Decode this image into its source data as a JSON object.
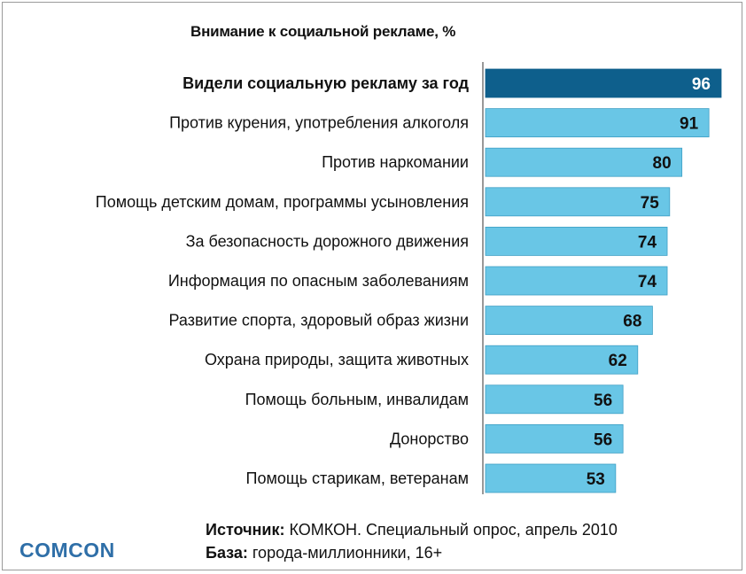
{
  "chart_data": {
    "type": "bar",
    "orientation": "horizontal",
    "title": "Внимание к социальной рекламе, %",
    "categories": [
      "Видели социальную рекламу за год",
      "Против курения, употребления алкоголя",
      "Против наркомании",
      "Помощь детским домам, программы усыновления",
      "За безопасность дорожного движения",
      "Информация по опасным заболеваниям",
      "Развитие спорта, здоровый образ жизни",
      "Охрана природы, защита животных",
      "Помощь больным, инвалидам",
      "Донорство",
      "Помощь старикам, ветеранам"
    ],
    "values": [
      96,
      91,
      80,
      75,
      74,
      74,
      68,
      62,
      56,
      56,
      53
    ],
    "highlight_index": 0,
    "xlim": [
      0,
      100
    ],
    "grid": false,
    "colors": {
      "highlight": "#0e5f8c",
      "bar": "#69c6e6",
      "bar_border": "#3e9fc4",
      "axis": "#555555",
      "value_on_dark": "#ffffff",
      "value_on_light": "#111111"
    }
  },
  "footer": {
    "source_label": "Источник:",
    "source_text": " КОМКОН. Специальный опрос, апрель 2010",
    "base_label": "База:",
    "base_text": " города-миллионники, 16+"
  },
  "logo": "COMCON"
}
